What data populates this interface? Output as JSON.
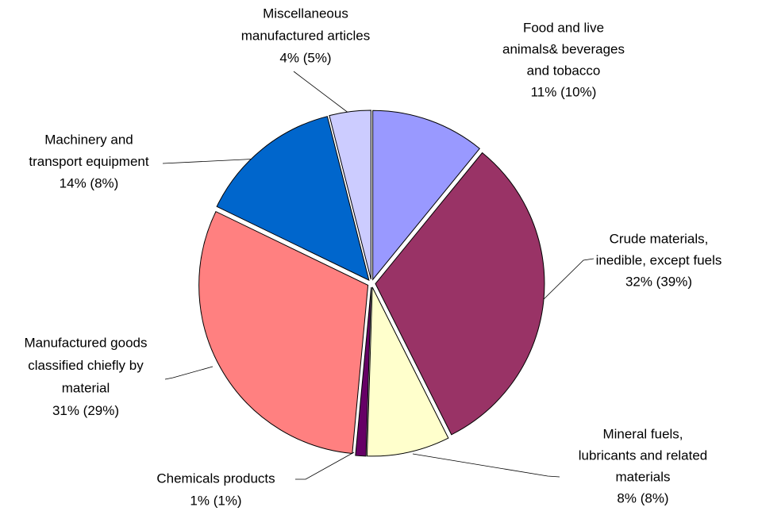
{
  "chart_data": {
    "type": "pie",
    "categories": [
      [
        "Food and live",
        "animals& beverages",
        "and tobacco"
      ],
      [
        "Crude materials,",
        "inedible, except fuels"
      ],
      [
        "Mineral fuels,",
        "lubricants and related",
        "materials"
      ],
      [
        "Chemicals  products"
      ],
      [
        "Manufactured goods",
        "classified chiefly by",
        "material"
      ],
      [
        "Machinery and",
        "transport equipment"
      ],
      [
        "Miscellaneous",
        "manufactured articles"
      ]
    ],
    "values": [
      11,
      32,
      8,
      1,
      31,
      14,
      4
    ],
    "value_labels": [
      "11% (10%)",
      "32% (39%)",
      "8% (8%)",
      "1% (1%)",
      "31% (29%)",
      "14% (8%)",
      "4% (5%)"
    ],
    "colors": [
      "#9999ff",
      "#993366",
      "#ffffcc",
      "#660066",
      "#ff8080",
      "#0066cc",
      "#ccccff"
    ]
  }
}
